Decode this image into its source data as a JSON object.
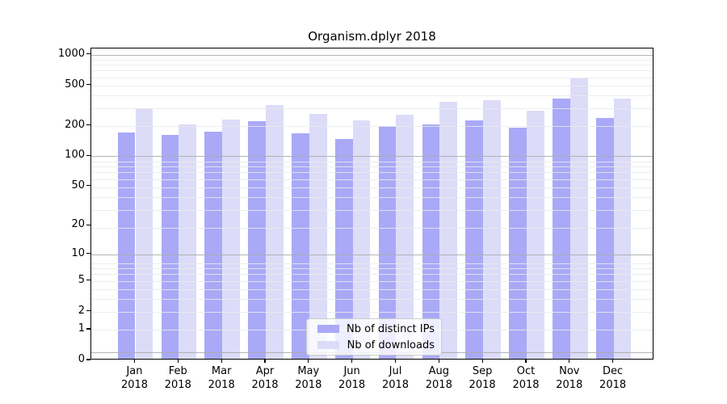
{
  "title": "Organism.dplyr 2018",
  "legend": {
    "items": [
      {
        "label": "Nb of distinct IPs",
        "series": "distinct_ips"
      },
      {
        "label": "Nb of downloads",
        "series": "downloads"
      }
    ]
  },
  "colors": {
    "distinct_ips": "#a9a9f8",
    "downloads": "#dcdcf8"
  },
  "y_axis": {
    "tick_values": [
      0,
      1,
      2,
      5,
      10,
      20,
      50,
      100,
      200,
      500,
      1000
    ]
  },
  "chart_data": {
    "type": "bar",
    "title": "Organism.dplyr 2018",
    "categories": [
      "Jan 2018",
      "Feb 2018",
      "Mar 2018",
      "Apr 2018",
      "May 2018",
      "Jun 2018",
      "Jul 2018",
      "Aug 2018",
      "Sep 2018",
      "Oct 2018",
      "Nov 2018",
      "Dec 2018"
    ],
    "series": [
      {
        "name": "Nb of distinct IPs",
        "color": "#a9a9f8",
        "values": [
          165,
          156,
          168,
          214,
          161,
          144,
          190,
          200,
          216,
          184,
          360,
          228
        ]
      },
      {
        "name": "Nb of downloads",
        "color": "#dcdcf8",
        "values": [
          288,
          198,
          222,
          306,
          251,
          218,
          248,
          331,
          345,
          270,
          567,
          356
        ]
      }
    ],
    "yscale": "log1p",
    "ylim": [
      0,
      1130
    ],
    "yticks": [
      0,
      1,
      2,
      5,
      10,
      20,
      50,
      100,
      200,
      500,
      1000
    ],
    "grid": true,
    "legend_position": "lower center inside"
  }
}
